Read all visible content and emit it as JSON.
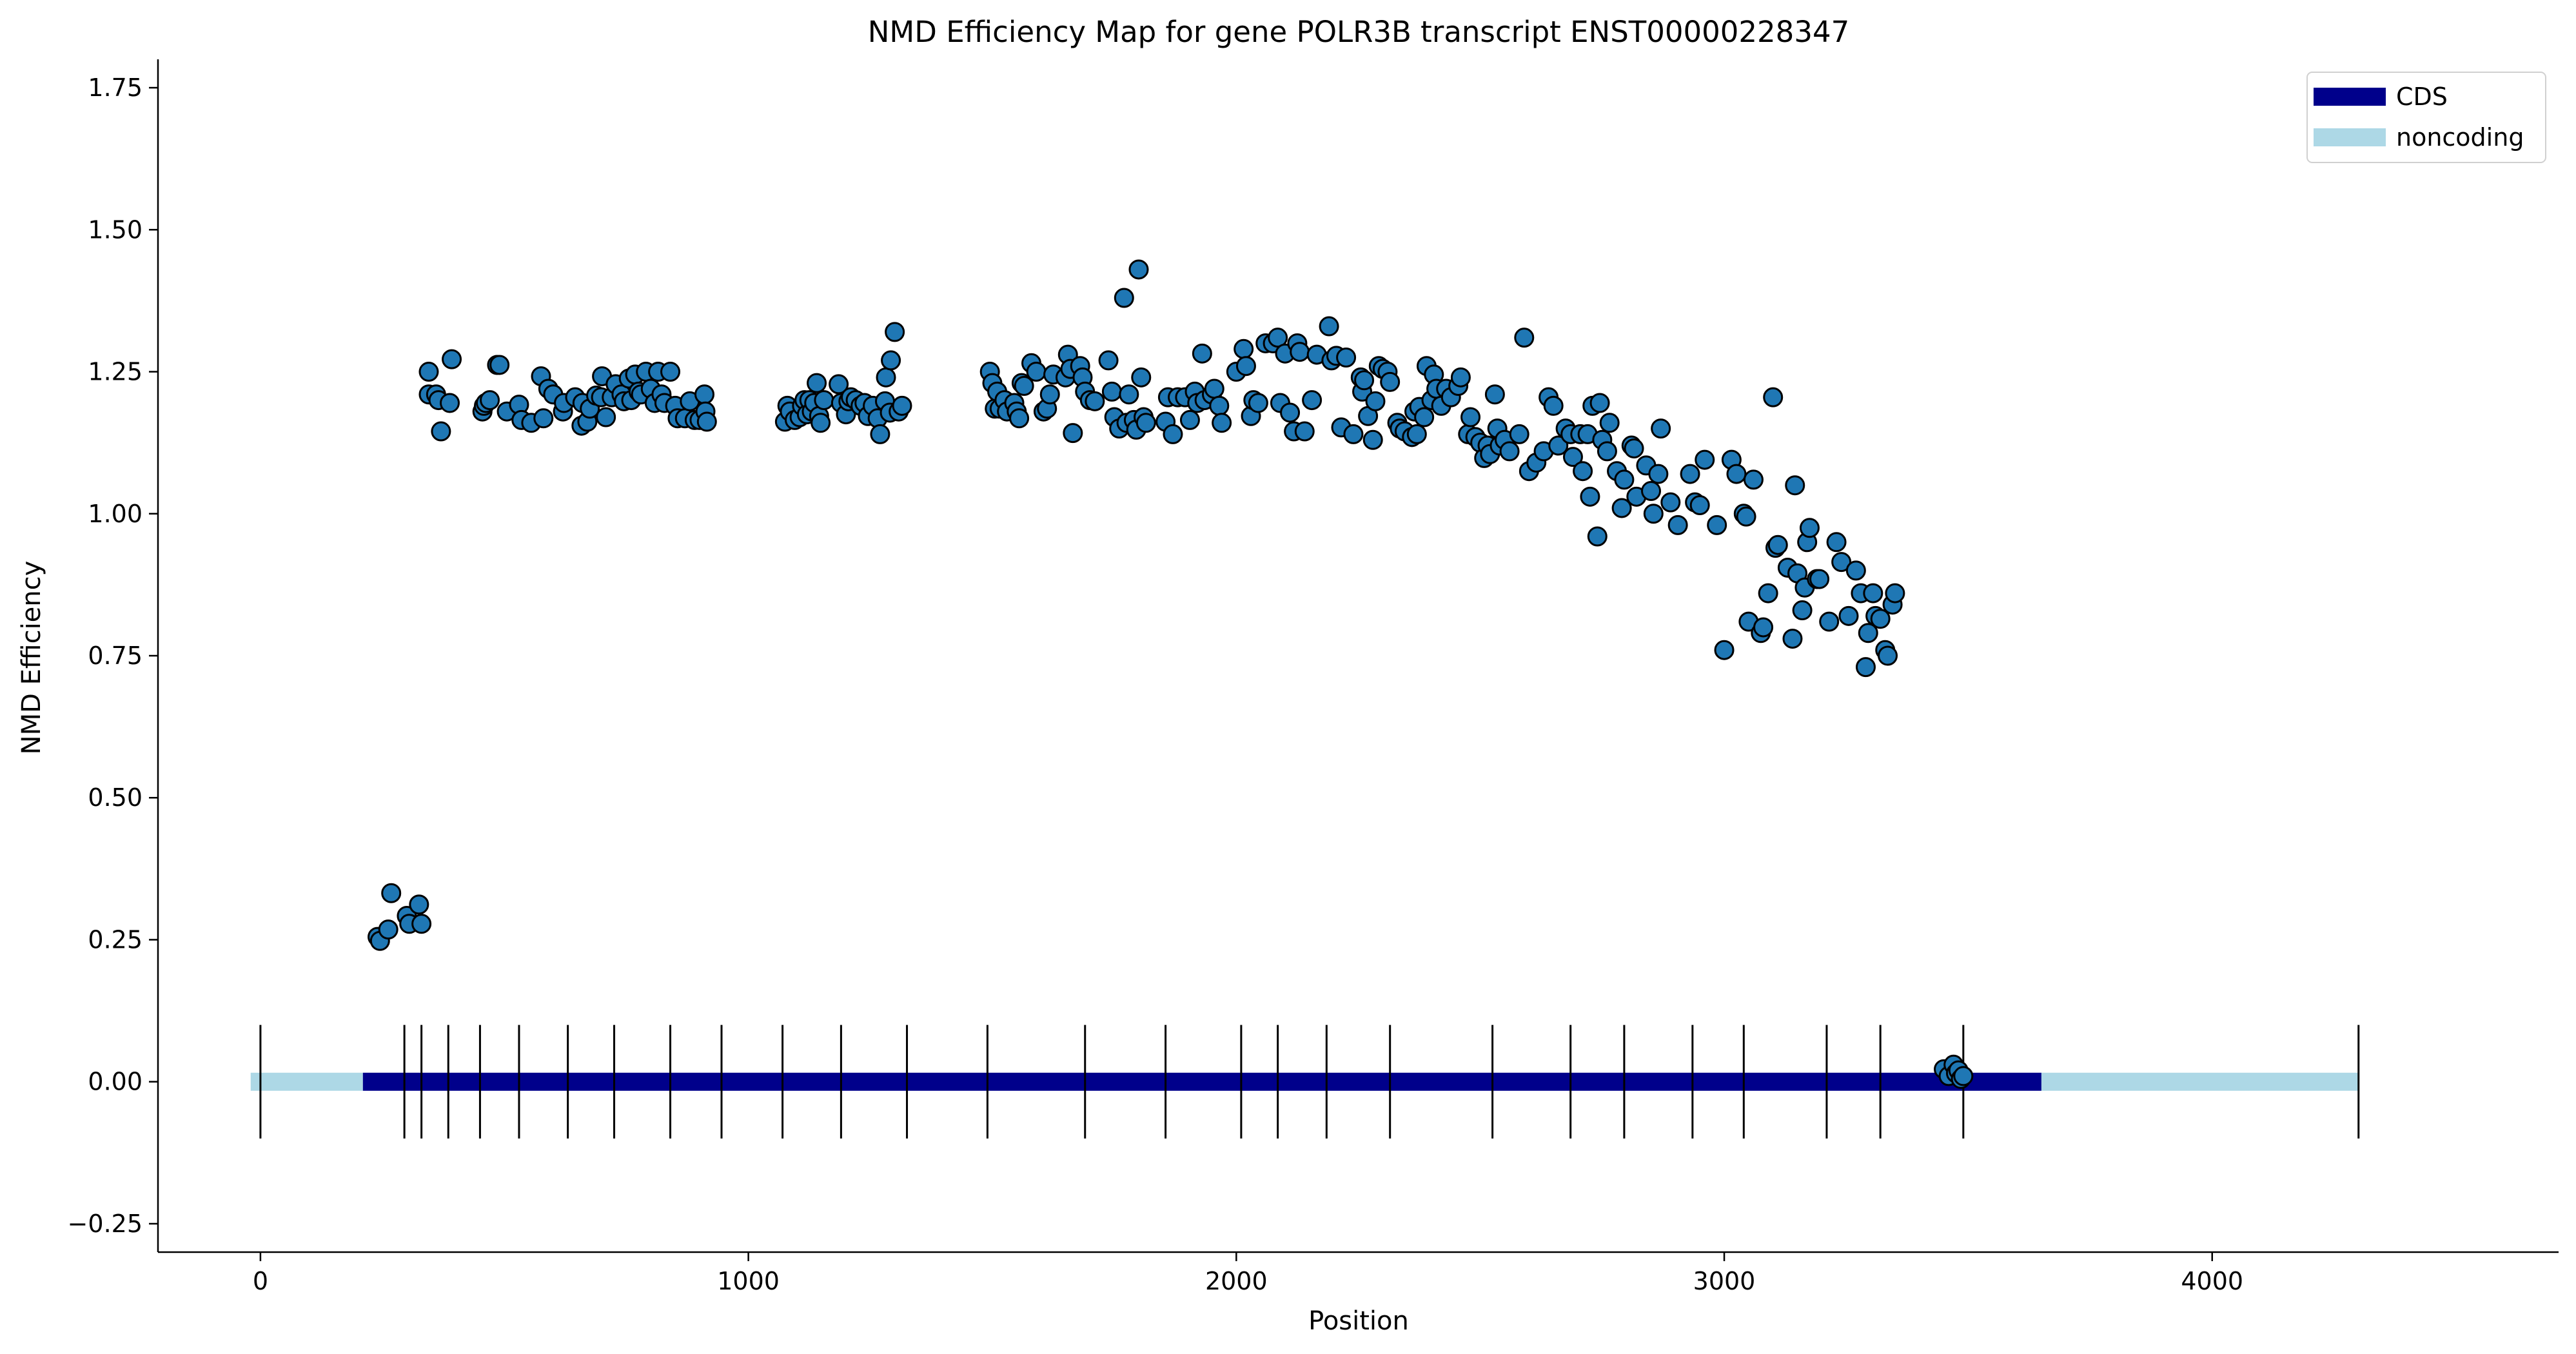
{
  "chart_data": {
    "type": "scatter",
    "title": "NMD Efficiency Map for gene POLR3B transcript ENST00000228347",
    "xlabel": "Position",
    "ylabel": "NMD Efficiency",
    "xlim": [
      -210,
      4710
    ],
    "ylim": [
      -0.3,
      1.8
    ],
    "x_ticks": [
      0,
      1000,
      2000,
      3000,
      4000
    ],
    "x_tick_labels": [
      "0",
      "1000",
      "2000",
      "3000",
      "4000"
    ],
    "y_ticks": [
      -0.25,
      0,
      0.25,
      0.5,
      0.75,
      1.0,
      1.25,
      1.5,
      1.75
    ],
    "y_tick_labels": [
      "−0.25",
      "0.00",
      "0.25",
      "0.50",
      "0.75",
      "1.00",
      "1.25",
      "1.50",
      "1.75"
    ],
    "grid": false,
    "legend": {
      "placement": "top-right",
      "entries": [
        {
          "label": "CDS",
          "color": "#00008b"
        },
        {
          "label": "noncoding",
          "color": "#add8e6"
        }
      ]
    },
    "transcript": {
      "y": 0,
      "noncoding_ranges": [
        [
          -20,
          210
        ],
        [
          3650,
          4300
        ]
      ],
      "cds_range": [
        210,
        3650
      ],
      "exon_boundaries": [
        0,
        295,
        330,
        385,
        450,
        530,
        630,
        725,
        840,
        945,
        1070,
        1190,
        1325,
        1490,
        1690,
        1855,
        2010,
        2085,
        2185,
        2315,
        2525,
        2685,
        2795,
        2935,
        3040,
        3210,
        3320,
        3490,
        4300
      ]
    },
    "colors": {
      "points": "#1f77b4",
      "point_edge": "#000000",
      "cds": "#00008b",
      "noncoding": "#add8e6",
      "boundary": "#000000"
    },
    "series": [
      {
        "values": [
          [
            240,
            0.255
          ],
          [
            245,
            0.248
          ],
          [
            262,
            0.268
          ],
          [
            268,
            0.332
          ],
          [
            300,
            0.292
          ],
          [
            305,
            0.278
          ],
          [
            325,
            0.312
          ],
          [
            330,
            0.278
          ],
          [
            345,
            1.25
          ],
          [
            345,
            1.21
          ],
          [
            360,
            1.21
          ],
          [
            365,
            1.2
          ],
          [
            370,
            1.145
          ],
          [
            388,
            1.195
          ],
          [
            392,
            1.272
          ],
          [
            455,
            1.18
          ],
          [
            458,
            1.19
          ],
          [
            462,
            1.195
          ],
          [
            470,
            1.2
          ],
          [
            485,
            1.262
          ],
          [
            490,
            1.262
          ],
          [
            505,
            1.18
          ],
          [
            530,
            1.192
          ],
          [
            535,
            1.165
          ],
          [
            555,
            1.16
          ],
          [
            575,
            1.242
          ],
          [
            580,
            1.168
          ],
          [
            590,
            1.22
          ],
          [
            600,
            1.21
          ],
          [
            620,
            1.18
          ],
          [
            622,
            1.195
          ],
          [
            645,
            1.205
          ],
          [
            658,
            1.155
          ],
          [
            660,
            1.195
          ],
          [
            670,
            1.162
          ],
          [
            675,
            1.185
          ],
          [
            688,
            1.208
          ],
          [
            698,
            1.205
          ],
          [
            700,
            1.242
          ],
          [
            708,
            1.17
          ],
          [
            720,
            1.205
          ],
          [
            728,
            1.228
          ],
          [
            740,
            1.21
          ],
          [
            745,
            1.198
          ],
          [
            755,
            1.238
          ],
          [
            760,
            1.2
          ],
          [
            768,
            1.245
          ],
          [
            775,
            1.215
          ],
          [
            780,
            1.21
          ],
          [
            790,
            1.25
          ],
          [
            800,
            1.22
          ],
          [
            808,
            1.195
          ],
          [
            815,
            1.25
          ],
          [
            822,
            1.21
          ],
          [
            828,
            1.195
          ],
          [
            840,
            1.25
          ],
          [
            850,
            1.19
          ],
          [
            855,
            1.168
          ],
          [
            870,
            1.168
          ],
          [
            880,
            1.198
          ],
          [
            890,
            1.165
          ],
          [
            900,
            1.165
          ],
          [
            910,
            1.21
          ],
          [
            912,
            1.18
          ],
          [
            915,
            1.162
          ],
          [
            1075,
            1.162
          ],
          [
            1080,
            1.19
          ],
          [
            1085,
            1.18
          ],
          [
            1095,
            1.165
          ],
          [
            1105,
            1.17
          ],
          [
            1110,
            1.19
          ],
          [
            1115,
            1.2
          ],
          [
            1120,
            1.175
          ],
          [
            1125,
            1.2
          ],
          [
            1130,
            1.18
          ],
          [
            1135,
            1.195
          ],
          [
            1140,
            1.23
          ],
          [
            1145,
            1.172
          ],
          [
            1148,
            1.16
          ],
          [
            1155,
            1.2
          ],
          [
            1185,
            1.228
          ],
          [
            1190,
            1.195
          ],
          [
            1200,
            1.175
          ],
          [
            1205,
            1.198
          ],
          [
            1210,
            1.205
          ],
          [
            1220,
            1.2
          ],
          [
            1230,
            1.19
          ],
          [
            1238,
            1.195
          ],
          [
            1245,
            1.172
          ],
          [
            1255,
            1.19
          ],
          [
            1265,
            1.168
          ],
          [
            1270,
            1.14
          ],
          [
            1280,
            1.198
          ],
          [
            1282,
            1.24
          ],
          [
            1290,
            1.178
          ],
          [
            1292,
            1.27
          ],
          [
            1300,
            1.32
          ],
          [
            1308,
            1.18
          ],
          [
            1315,
            1.19
          ],
          [
            1495,
            1.25
          ],
          [
            1500,
            1.23
          ],
          [
            1505,
            1.185
          ],
          [
            1510,
            1.215
          ],
          [
            1515,
            1.185
          ],
          [
            1525,
            1.2
          ],
          [
            1530,
            1.18
          ],
          [
            1545,
            1.195
          ],
          [
            1550,
            1.18
          ],
          [
            1555,
            1.168
          ],
          [
            1560,
            1.23
          ],
          [
            1565,
            1.225
          ],
          [
            1580,
            1.265
          ],
          [
            1590,
            1.25
          ],
          [
            1605,
            1.18
          ],
          [
            1612,
            1.185
          ],
          [
            1618,
            1.21
          ],
          [
            1625,
            1.245
          ],
          [
            1650,
            1.24
          ],
          [
            1655,
            1.28
          ],
          [
            1660,
            1.255
          ],
          [
            1665,
            1.142
          ],
          [
            1680,
            1.26
          ],
          [
            1685,
            1.24
          ],
          [
            1690,
            1.215
          ],
          [
            1700,
            1.2
          ],
          [
            1710,
            1.198
          ],
          [
            1738,
            1.27
          ],
          [
            1745,
            1.215
          ],
          [
            1750,
            1.17
          ],
          [
            1760,
            1.15
          ],
          [
            1770,
            1.38
          ],
          [
            1775,
            1.16
          ],
          [
            1780,
            1.21
          ],
          [
            1790,
            1.165
          ],
          [
            1795,
            1.148
          ],
          [
            1800,
            1.43
          ],
          [
            1805,
            1.24
          ],
          [
            1810,
            1.17
          ],
          [
            1815,
            1.16
          ],
          [
            1855,
            1.162
          ],
          [
            1860,
            1.205
          ],
          [
            1870,
            1.14
          ],
          [
            1880,
            1.205
          ],
          [
            1895,
            1.205
          ],
          [
            1905,
            1.165
          ],
          [
            1915,
            1.215
          ],
          [
            1920,
            1.195
          ],
          [
            1930,
            1.282
          ],
          [
            1935,
            1.2
          ],
          [
            1950,
            1.21
          ],
          [
            1955,
            1.22
          ],
          [
            1965,
            1.19
          ],
          [
            1970,
            1.16
          ],
          [
            2000,
            1.25
          ],
          [
            2015,
            1.29
          ],
          [
            2020,
            1.26
          ],
          [
            2030,
            1.172
          ],
          [
            2035,
            1.2
          ],
          [
            2045,
            1.195
          ],
          [
            2060,
            1.3
          ],
          [
            2075,
            1.3
          ],
          [
            2085,
            1.31
          ],
          [
            2090,
            1.195
          ],
          [
            2100,
            1.282
          ],
          [
            2110,
            1.178
          ],
          [
            2118,
            1.145
          ],
          [
            2125,
            1.3
          ],
          [
            2130,
            1.285
          ],
          [
            2140,
            1.145
          ],
          [
            2155,
            1.2
          ],
          [
            2165,
            1.28
          ],
          [
            2190,
            1.33
          ],
          [
            2195,
            1.27
          ],
          [
            2205,
            1.278
          ],
          [
            2215,
            1.152
          ],
          [
            2225,
            1.275
          ],
          [
            2240,
            1.14
          ],
          [
            2255,
            1.24
          ],
          [
            2258,
            1.215
          ],
          [
            2262,
            1.235
          ],
          [
            2270,
            1.172
          ],
          [
            2280,
            1.13
          ],
          [
            2285,
            1.198
          ],
          [
            2292,
            1.26
          ],
          [
            2300,
            1.255
          ],
          [
            2310,
            1.25
          ],
          [
            2315,
            1.232
          ],
          [
            2330,
            1.16
          ],
          [
            2335,
            1.15
          ],
          [
            2345,
            1.145
          ],
          [
            2360,
            1.135
          ],
          [
            2365,
            1.18
          ],
          [
            2370,
            1.14
          ],
          [
            2375,
            1.188
          ],
          [
            2385,
            1.17
          ],
          [
            2390,
            1.26
          ],
          [
            2400,
            1.2
          ],
          [
            2405,
            1.245
          ],
          [
            2410,
            1.22
          ],
          [
            2420,
            1.19
          ],
          [
            2430,
            1.22
          ],
          [
            2440,
            1.205
          ],
          [
            2455,
            1.225
          ],
          [
            2460,
            1.24
          ],
          [
            2475,
            1.14
          ],
          [
            2480,
            1.17
          ],
          [
            2490,
            1.135
          ],
          [
            2500,
            1.125
          ],
          [
            2508,
            1.098
          ],
          [
            2515,
            1.12
          ],
          [
            2520,
            1.105
          ],
          [
            2530,
            1.21
          ],
          [
            2535,
            1.15
          ],
          [
            2540,
            1.12
          ],
          [
            2550,
            1.13
          ],
          [
            2560,
            1.11
          ],
          [
            2580,
            1.14
          ],
          [
            2590,
            1.31
          ],
          [
            2600,
            1.075
          ],
          [
            2615,
            1.09
          ],
          [
            2630,
            1.11
          ],
          [
            2640,
            1.205
          ],
          [
            2650,
            1.19
          ],
          [
            2660,
            1.12
          ],
          [
            2675,
            1.15
          ],
          [
            2685,
            1.14
          ],
          [
            2690,
            1.1
          ],
          [
            2705,
            1.14
          ],
          [
            2710,
            1.075
          ],
          [
            2720,
            1.14
          ],
          [
            2725,
            1.03
          ],
          [
            2730,
            1.19
          ],
          [
            2740,
            0.96
          ],
          [
            2745,
            1.195
          ],
          [
            2750,
            1.13
          ],
          [
            2760,
            1.11
          ],
          [
            2765,
            1.16
          ],
          [
            2780,
            1.075
          ],
          [
            2790,
            1.01
          ],
          [
            2795,
            1.06
          ],
          [
            2810,
            1.12
          ],
          [
            2815,
            1.115
          ],
          [
            2820,
            1.03
          ],
          [
            2840,
            1.085
          ],
          [
            2850,
            1.04
          ],
          [
            2855,
            1.0
          ],
          [
            2865,
            1.07
          ],
          [
            2870,
            1.15
          ],
          [
            2890,
            1.02
          ],
          [
            2905,
            0.98
          ],
          [
            2930,
            1.07
          ],
          [
            2940,
            1.02
          ],
          [
            2950,
            1.015
          ],
          [
            2960,
            1.095
          ],
          [
            2985,
            0.98
          ],
          [
            3000,
            0.76
          ],
          [
            3015,
            1.095
          ],
          [
            3025,
            1.07
          ],
          [
            3040,
            1.0
          ],
          [
            3045,
            0.995
          ],
          [
            3050,
            0.81
          ],
          [
            3060,
            1.06
          ],
          [
            3075,
            0.79
          ],
          [
            3080,
            0.8
          ],
          [
            3090,
            0.86
          ],
          [
            3100,
            1.205
          ],
          [
            3105,
            0.94
          ],
          [
            3110,
            0.945
          ],
          [
            3130,
            0.905
          ],
          [
            3140,
            0.78
          ],
          [
            3145,
            1.05
          ],
          [
            3150,
            0.895
          ],
          [
            3160,
            0.83
          ],
          [
            3165,
            0.87
          ],
          [
            3170,
            0.95
          ],
          [
            3175,
            0.975
          ],
          [
            3190,
            0.885
          ],
          [
            3195,
            0.885
          ],
          [
            3215,
            0.81
          ],
          [
            3230,
            0.95
          ],
          [
            3240,
            0.915
          ],
          [
            3255,
            0.82
          ],
          [
            3270,
            0.9
          ],
          [
            3280,
            0.86
          ],
          [
            3290,
            0.73
          ],
          [
            3295,
            0.79
          ],
          [
            3305,
            0.86
          ],
          [
            3310,
            0.82
          ],
          [
            3320,
            0.815
          ],
          [
            3330,
            0.76
          ],
          [
            3335,
            0.75
          ],
          [
            3345,
            0.84
          ],
          [
            3350,
            0.86
          ],
          [
            3450,
            0.022
          ],
          [
            3460,
            0.01
          ],
          [
            3470,
            0.03
          ],
          [
            3475,
            0.015
          ],
          [
            3480,
            0.02
          ],
          [
            3485,
            0.005
          ],
          [
            3490,
            0.01
          ]
        ]
      }
    ]
  }
}
